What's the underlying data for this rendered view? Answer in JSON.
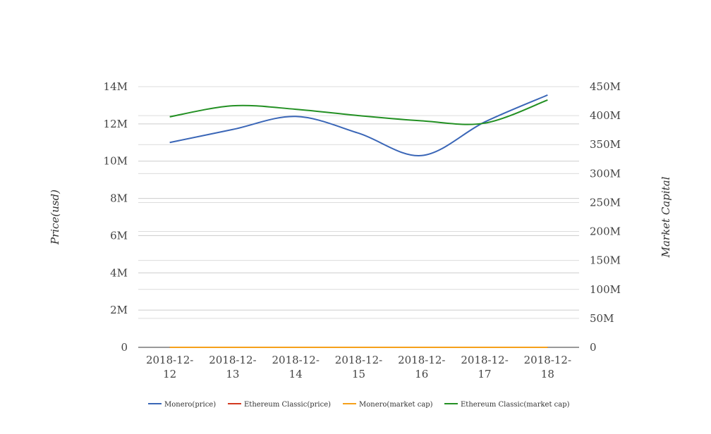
{
  "chart_data": {
    "type": "line",
    "categories": [
      "2018-12-12",
      "2018-12-13",
      "2018-12-14",
      "2018-12-15",
      "2018-12-16",
      "2018-12-17",
      "2018-12-18"
    ],
    "category_lines": [
      [
        "2018-12-",
        "12"
      ],
      [
        "2018-12-",
        "13"
      ],
      [
        "2018-12-",
        "14"
      ],
      [
        "2018-12-",
        "15"
      ],
      [
        "2018-12-",
        "16"
      ],
      [
        "2018-12-",
        "17"
      ],
      [
        "2018-12-",
        "18"
      ]
    ],
    "ylabel": "Price(usd)",
    "y2label": "Market Capital",
    "ylim": [
      0,
      14000000
    ],
    "y2lim": [
      0,
      450000000
    ],
    "yticks": [
      0,
      2000000,
      4000000,
      6000000,
      8000000,
      10000000,
      12000000,
      14000000
    ],
    "ytick_labels": [
      "0",
      "2M",
      "4M",
      "6M",
      "8M",
      "10M",
      "12M",
      "14M"
    ],
    "y2ticks": [
      0,
      50000000,
      100000000,
      150000000,
      200000000,
      250000000,
      300000000,
      350000000,
      400000000,
      450000000
    ],
    "y2tick_labels": [
      "0",
      "50M",
      "100M",
      "150M",
      "200M",
      "250M",
      "300M",
      "350M",
      "400M",
      "450M"
    ],
    "grid": true,
    "legend_position": "bottom",
    "series": [
      {
        "name": "Monero(price)",
        "axis": "left",
        "color": "#3a66b7",
        "values": [
          11000000,
          11700000,
          12400000,
          11500000,
          10300000,
          12100000,
          13550000
        ]
      },
      {
        "name": "Ethereum Classic(price)",
        "axis": "left",
        "color": "#d2391f",
        "values": [
          0,
          0,
          0,
          0,
          0,
          0,
          0
        ]
      },
      {
        "name": "Monero(market cap)",
        "axis": "right",
        "color": "#f5a01a",
        "values": [
          0,
          0,
          0,
          0,
          0,
          0,
          0
        ]
      },
      {
        "name": "Ethereum Classic(market cap)",
        "axis": "right",
        "color": "#239023",
        "values": [
          398000000,
          417000000,
          411000000,
          400000000,
          391000000,
          387000000,
          427000000
        ]
      }
    ]
  }
}
